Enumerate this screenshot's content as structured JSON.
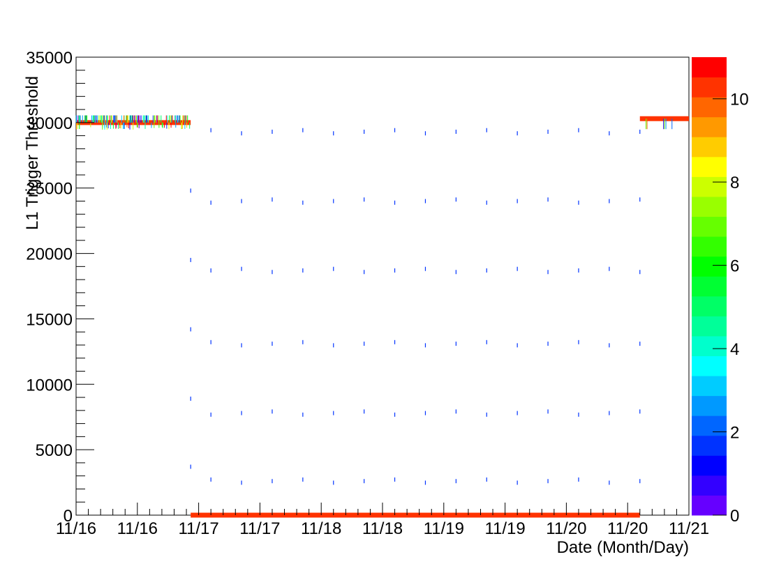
{
  "chart_data": {
    "type": "heatmap",
    "xlabel": "Date (Month/Day)",
    "ylabel": "L1 Trigger Threshold",
    "x_tick_labels": [
      "11/16",
      "11/16",
      "11/17",
      "11/17",
      "11/18",
      "11/18",
      "11/19",
      "11/19",
      "11/20",
      "11/20",
      "11/21"
    ],
    "y_tick_labels": [
      "0",
      "5000",
      "10000",
      "15000",
      "20000",
      "25000",
      "30000",
      "35000"
    ],
    "ylim": [
      0,
      35000
    ],
    "x_unit": "days after 11/16",
    "xlim": [
      0,
      5
    ],
    "grid": false,
    "colorbar": {
      "range": [
        0,
        11
      ],
      "tick_labels": [
        "0",
        "2",
        "4",
        "6",
        "8",
        "10"
      ],
      "palette": [
        "#6600ff",
        "#3300ff",
        "#0000ff",
        "#0033ff",
        "#0066ff",
        "#0099ff",
        "#00ccff",
        "#00ffff",
        "#00ffcc",
        "#00ff99",
        "#00ff66",
        "#00ff33",
        "#00ff00",
        "#33ff00",
        "#66ff00",
        "#99ff00",
        "#ccff00",
        "#ffff00",
        "#ffcc00",
        "#ff9900",
        "#ff6600",
        "#ff3300",
        "#ff0000"
      ]
    },
    "segments": [
      {
        "x_start": 0.0,
        "x_end": 1.87,
        "y": 30000,
        "value": 10.5
      },
      {
        "x_start": 1.87,
        "x_end": 9.2,
        "y": 0,
        "value": 10.5
      },
      {
        "x_start": 9.2,
        "x_end": 10.0,
        "y": 30300,
        "value": 10.5
      }
    ],
    "sparse_marks": {
      "x_start": 2.2,
      "x_step": 0.5,
      "count": 15,
      "levels": [
        29300,
        24000,
        18700,
        13100,
        7800,
        2600
      ],
      "value": 1.5
    },
    "transition_marks": {
      "x": 1.87,
      "levels": [
        24800,
        19500,
        14200,
        8900,
        3700
      ]
    }
  }
}
